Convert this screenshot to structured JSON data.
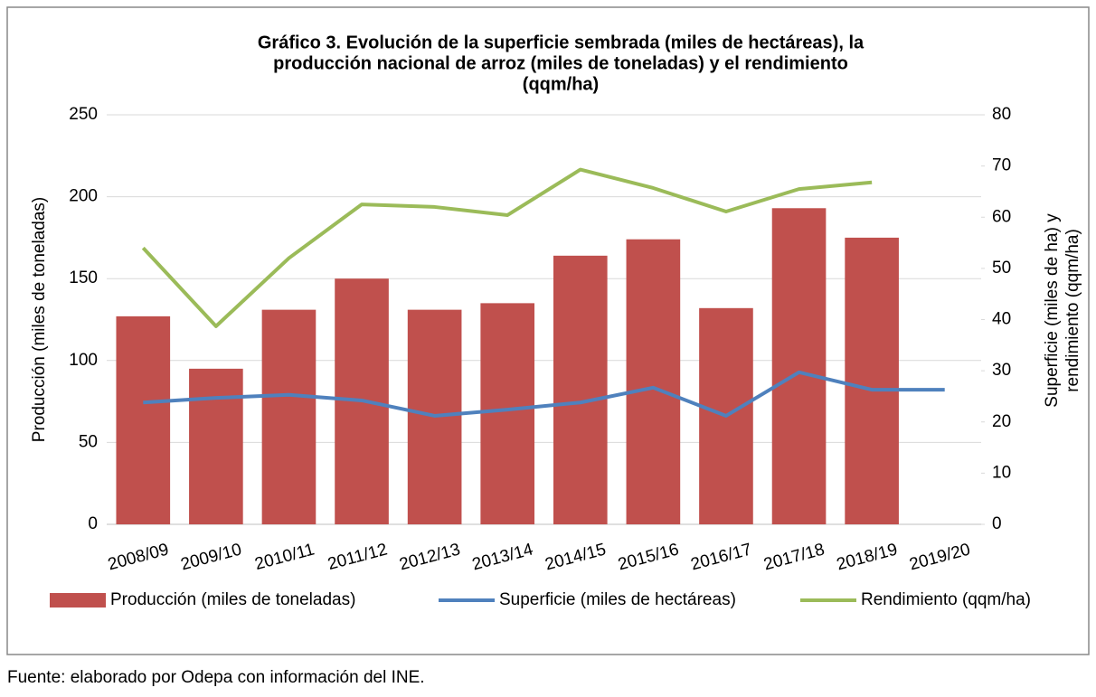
{
  "chart_data": {
    "type": "bar_line",
    "title": [
      "Gráfico 3. Evolución de la superficie sembrada (miles de hectáreas), la",
      "producción nacional de arroz (miles de toneladas) y el rendimiento",
      "(qqm/ha)"
    ],
    "ylabel": "Producción (miles de toneladas)",
    "y2label": [
      "Superficie (miles de ha) y",
      "rendimiento (qqm/ha)"
    ],
    "categories": [
      "2008/09",
      "2009/10",
      "2010/11",
      "2011/12",
      "2012/13",
      "2013/14",
      "2014/15",
      "2015/16",
      "2016/17",
      "2017/18",
      "2018/19",
      "2019/20"
    ],
    "series": [
      {
        "name": "Producción (miles de toneladas)",
        "kind": "bar",
        "color": "#c0504d",
        "values": [
          127,
          95,
          131,
          150,
          131,
          135,
          164,
          174,
          132,
          193,
          175,
          null
        ]
      },
      {
        "name": "Superficie (miles de hectáreas)",
        "kind": "line",
        "axis": "y2",
        "color": "#4f81bd",
        "values": [
          23.8,
          24.7,
          25.3,
          24.2,
          21.2,
          22.4,
          23.8,
          26.7,
          21.2,
          29.7,
          26.3,
          26.3
        ]
      },
      {
        "name": "Rendimiento (qqm/ha)",
        "kind": "line",
        "axis": "y2",
        "color": "#9bbb59",
        "values": [
          54,
          38.7,
          52,
          62.5,
          62,
          60.4,
          69.3,
          65.7,
          61.1,
          65.5,
          66.8,
          null
        ]
      }
    ],
    "ylim": [
      0,
      250
    ],
    "yticks": [
      0,
      50,
      100,
      150,
      200,
      250
    ],
    "y2lim": [
      0,
      80
    ],
    "y2ticks": [
      0,
      10,
      20,
      30,
      40,
      50,
      60,
      70,
      80
    ],
    "grid": true,
    "legend": "bottom",
    "source": "Fuente: elaborado por Odepa con información del INE."
  }
}
